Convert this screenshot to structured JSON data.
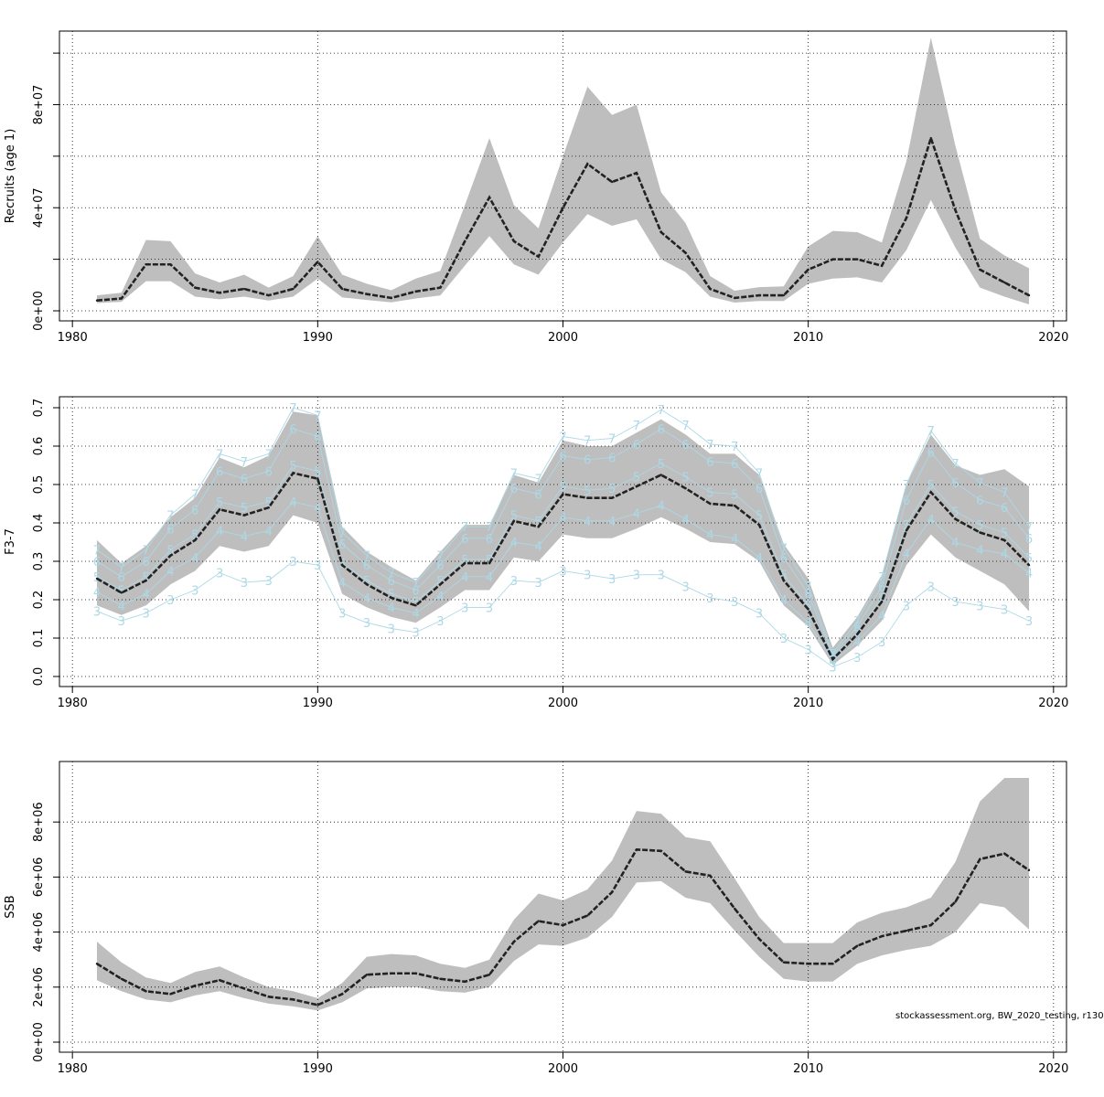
{
  "footer": "stockassessment.org, BW_2020_testing, r130",
  "style": {
    "band_color": "#bebebe",
    "line_color": "#222222",
    "age_curve_color": "#add8e6",
    "grid": "dotted"
  },
  "chart_data": [
    {
      "type": "line",
      "ylabel": "Recruits (age 1)",
      "xlim": [
        1980,
        2020
      ],
      "xticks": [
        1980,
        1990,
        2000,
        2010,
        2020
      ],
      "ylim": [
        0,
        105000000
      ],
      "yticks": [
        0,
        40000000,
        80000000
      ],
      "ytick_labels": [
        "0e+00",
        "4e+07",
        "8e+07"
      ],
      "ygrid": [
        0,
        20000000,
        40000000,
        60000000,
        80000000,
        100000000
      ],
      "x": [
        1981,
        1982,
        1983,
        1984,
        1985,
        1986,
        1987,
        1988,
        1989,
        1990,
        1991,
        1992,
        1993,
        1994,
        1995,
        1996,
        1997,
        1998,
        1999,
        2000,
        2001,
        2002,
        2003,
        2004,
        2005,
        2006,
        2007,
        2008,
        2009,
        2010,
        2011,
        2012,
        2013,
        2014,
        2015,
        2016,
        2017,
        2018,
        2019
      ],
      "series": [
        {
          "values": [
            4000000,
            4800000,
            18000000,
            18000000,
            9000000,
            7000000,
            8500000,
            6000000,
            8500000,
            19000000,
            8500000,
            6500000,
            5000000,
            7500000,
            9000000,
            27000000,
            44000000,
            27000000,
            21000000,
            40000000,
            57000000,
            50000000,
            53500000,
            30500000,
            22500000,
            8500000,
            5000000,
            6000000,
            6000000,
            16000000,
            20000000,
            20000000,
            17500000,
            36000000,
            67000000,
            39000000,
            16000000,
            11000000,
            6000000
          ]
        }
      ],
      "band": {
        "upper": [
          6000000,
          7000000,
          27500000,
          27000000,
          14500000,
          11000000,
          14000000,
          9000000,
          13500000,
          29000000,
          14000000,
          10500000,
          8000000,
          12500000,
          15500000,
          41000000,
          67000000,
          41000000,
          32000000,
          60000000,
          87000000,
          76000000,
          80000000,
          46000000,
          34000000,
          13500000,
          7800000,
          9200000,
          9500000,
          25000000,
          31000000,
          30500000,
          26500000,
          58000000,
          106000000,
          64000000,
          28000000,
          21500000,
          16500000
        ],
        "lower": [
          3000000,
          3500000,
          11500000,
          11500000,
          5500000,
          4500000,
          5500000,
          4000000,
          5500000,
          12500000,
          5200000,
          4200000,
          3300000,
          4800000,
          6000000,
          17500000,
          29000000,
          18000000,
          14000000,
          26500000,
          37500000,
          33000000,
          35500000,
          20000000,
          15000000,
          5500000,
          3200000,
          3800000,
          3800000,
          10500000,
          12500000,
          13000000,
          11000000,
          23500000,
          43000000,
          24500000,
          9000000,
          5500000,
          2500000
        ]
      }
    },
    {
      "type": "line",
      "ylabel": "F3-7",
      "xlim": [
        1980,
        2020
      ],
      "xticks": [
        1980,
        1990,
        2000,
        2010,
        2020
      ],
      "ylim": [
        0,
        0.7
      ],
      "yticks": [
        0.0,
        0.1,
        0.2,
        0.3,
        0.4,
        0.5,
        0.6,
        0.7
      ],
      "ytick_labels": [
        "0.0",
        "0.1",
        "0.2",
        "0.3",
        "0.4",
        "0.5",
        "0.6",
        "0.7"
      ],
      "ygrid": [
        0.0,
        0.1,
        0.2,
        0.3,
        0.4,
        0.5,
        0.6,
        0.7
      ],
      "x": [
        1981,
        1982,
        1983,
        1984,
        1985,
        1986,
        1987,
        1988,
        1989,
        1990,
        1991,
        1992,
        1993,
        1994,
        1995,
        1996,
        1997,
        1998,
        1999,
        2000,
        2001,
        2002,
        2003,
        2004,
        2005,
        2006,
        2007,
        2008,
        2009,
        2010,
        2011,
        2012,
        2013,
        2014,
        2015,
        2016,
        2017,
        2018,
        2019
      ],
      "series": [
        {
          "values": [
            0.255,
            0.218,
            0.25,
            0.315,
            0.355,
            0.435,
            0.42,
            0.44,
            0.53,
            0.515,
            0.29,
            0.24,
            0.205,
            0.185,
            0.24,
            0.295,
            0.295,
            0.405,
            0.39,
            0.475,
            0.465,
            0.465,
            0.495,
            0.525,
            0.49,
            0.45,
            0.445,
            0.395,
            0.25,
            0.175,
            0.045,
            0.11,
            0.195,
            0.38,
            0.48,
            0.41,
            0.375,
            0.355,
            0.29
          ]
        }
      ],
      "band": {
        "upper": [
          0.355,
          0.295,
          0.34,
          0.415,
          0.465,
          0.57,
          0.545,
          0.575,
          0.69,
          0.68,
          0.39,
          0.325,
          0.285,
          0.25,
          0.325,
          0.395,
          0.395,
          0.525,
          0.505,
          0.615,
          0.6,
          0.6,
          0.635,
          0.67,
          0.63,
          0.58,
          0.58,
          0.525,
          0.345,
          0.255,
          0.075,
          0.155,
          0.265,
          0.5,
          0.63,
          0.55,
          0.525,
          0.54,
          0.495
        ],
        "lower": [
          0.185,
          0.16,
          0.185,
          0.24,
          0.275,
          0.34,
          0.325,
          0.34,
          0.42,
          0.4,
          0.215,
          0.18,
          0.155,
          0.14,
          0.18,
          0.225,
          0.225,
          0.31,
          0.3,
          0.37,
          0.36,
          0.36,
          0.385,
          0.415,
          0.385,
          0.35,
          0.345,
          0.3,
          0.185,
          0.13,
          0.03,
          0.08,
          0.145,
          0.29,
          0.37,
          0.31,
          0.275,
          0.24,
          0.17
        ]
      },
      "age_curves": [
        {
          "label": "3",
          "values": [
            0.17,
            0.145,
            0.165,
            0.2,
            0.225,
            0.27,
            0.245,
            0.25,
            0.3,
            0.29,
            0.165,
            0.14,
            0.125,
            0.115,
            0.145,
            0.18,
            0.18,
            0.25,
            0.245,
            0.275,
            0.265,
            0.255,
            0.265,
            0.265,
            0.235,
            0.205,
            0.195,
            0.165,
            0.1,
            0.07,
            0.025,
            0.05,
            0.09,
            0.185,
            0.235,
            0.195,
            0.185,
            0.175,
            0.145
          ]
        },
        {
          "label": "4",
          "values": [
            0.22,
            0.185,
            0.215,
            0.275,
            0.31,
            0.38,
            0.365,
            0.38,
            0.455,
            0.44,
            0.245,
            0.205,
            0.18,
            0.165,
            0.21,
            0.26,
            0.26,
            0.35,
            0.34,
            0.415,
            0.405,
            0.405,
            0.425,
            0.445,
            0.41,
            0.37,
            0.36,
            0.31,
            0.2,
            0.14,
            0.04,
            0.09,
            0.16,
            0.32,
            0.41,
            0.35,
            0.33,
            0.32,
            0.27
          ]
        },
        {
          "label": "5",
          "values": [
            0.26,
            0.225,
            0.26,
            0.33,
            0.37,
            0.455,
            0.44,
            0.455,
            0.55,
            0.535,
            0.295,
            0.25,
            0.215,
            0.195,
            0.25,
            0.305,
            0.305,
            0.42,
            0.405,
            0.495,
            0.485,
            0.49,
            0.52,
            0.555,
            0.52,
            0.48,
            0.475,
            0.42,
            0.265,
            0.185,
            0.05,
            0.115,
            0.205,
            0.395,
            0.5,
            0.43,
            0.395,
            0.375,
            0.31
          ]
        },
        {
          "label": "6",
          "values": [
            0.3,
            0.26,
            0.3,
            0.385,
            0.435,
            0.535,
            0.515,
            0.535,
            0.645,
            0.625,
            0.345,
            0.29,
            0.25,
            0.225,
            0.29,
            0.36,
            0.36,
            0.49,
            0.475,
            0.575,
            0.565,
            0.57,
            0.605,
            0.645,
            0.605,
            0.56,
            0.555,
            0.49,
            0.31,
            0.215,
            0.055,
            0.13,
            0.235,
            0.46,
            0.585,
            0.505,
            0.46,
            0.44,
            0.36
          ]
        },
        {
          "label": "7",
          "values": [
            0.33,
            0.285,
            0.33,
            0.42,
            0.475,
            0.58,
            0.56,
            0.58,
            0.7,
            0.68,
            0.375,
            0.315,
            0.27,
            0.245,
            0.315,
            0.39,
            0.39,
            0.53,
            0.515,
            0.625,
            0.615,
            0.62,
            0.655,
            0.695,
            0.655,
            0.605,
            0.6,
            0.53,
            0.335,
            0.235,
            0.06,
            0.145,
            0.26,
            0.5,
            0.64,
            0.555,
            0.505,
            0.48,
            0.39
          ]
        }
      ]
    },
    {
      "type": "line",
      "ylabel": "SSB",
      "xlim": [
        1980,
        2020
      ],
      "xticks": [
        1980,
        1990,
        2000,
        2010,
        2020
      ],
      "ylim": [
        0,
        9800000
      ],
      "yticks": [
        0,
        2000000,
        4000000,
        6000000,
        8000000
      ],
      "ytick_labels": [
        "0e+00",
        "2e+06",
        "4e+06",
        "6e+06",
        "8e+06"
      ],
      "ygrid": [
        0,
        2000000,
        4000000,
        6000000,
        8000000
      ],
      "x": [
        1981,
        1982,
        1983,
        1984,
        1985,
        1986,
        1987,
        1988,
        1989,
        1990,
        1991,
        1992,
        1993,
        1994,
        1995,
        1996,
        1997,
        1998,
        1999,
        2000,
        2001,
        2002,
        2003,
        2004,
        2005,
        2006,
        2007,
        2008,
        2009,
        2010,
        2011,
        2012,
        2013,
        2014,
        2015,
        2016,
        2017,
        2018,
        2019
      ],
      "series": [
        {
          "values": [
            2850000,
            2300000,
            1850000,
            1750000,
            2050000,
            2250000,
            1950000,
            1650000,
            1550000,
            1350000,
            1750000,
            2450000,
            2500000,
            2500000,
            2300000,
            2200000,
            2450000,
            3650000,
            4400000,
            4250000,
            4600000,
            5450000,
            7000000,
            6950000,
            6200000,
            6050000,
            4850000,
            3750000,
            2900000,
            2850000,
            2850000,
            3500000,
            3850000,
            4050000,
            4250000,
            5100000,
            6650000,
            6850000,
            6250000
          ]
        }
      ],
      "band": {
        "upper": [
          3650000,
          2900000,
          2350000,
          2150000,
          2550000,
          2750000,
          2350000,
          2000000,
          1850000,
          1600000,
          2150000,
          3100000,
          3200000,
          3150000,
          2850000,
          2700000,
          3000000,
          4450000,
          5400000,
          5150000,
          5550000,
          6600000,
          8400000,
          8300000,
          7450000,
          7300000,
          5950000,
          4550000,
          3600000,
          3600000,
          3600000,
          4350000,
          4700000,
          4900000,
          5250000,
          6550000,
          8750000,
          9600000,
          9600000
        ],
        "lower": [
          2250000,
          1850000,
          1550000,
          1450000,
          1700000,
          1850000,
          1600000,
          1400000,
          1300000,
          1150000,
          1450000,
          1950000,
          2000000,
          2000000,
          1850000,
          1800000,
          2000000,
          2950000,
          3550000,
          3500000,
          3800000,
          4550000,
          5800000,
          5850000,
          5250000,
          5050000,
          4050000,
          3100000,
          2300000,
          2200000,
          2200000,
          2850000,
          3150000,
          3350000,
          3500000,
          4000000,
          5050000,
          4900000,
          4100000
        ]
      }
    }
  ]
}
